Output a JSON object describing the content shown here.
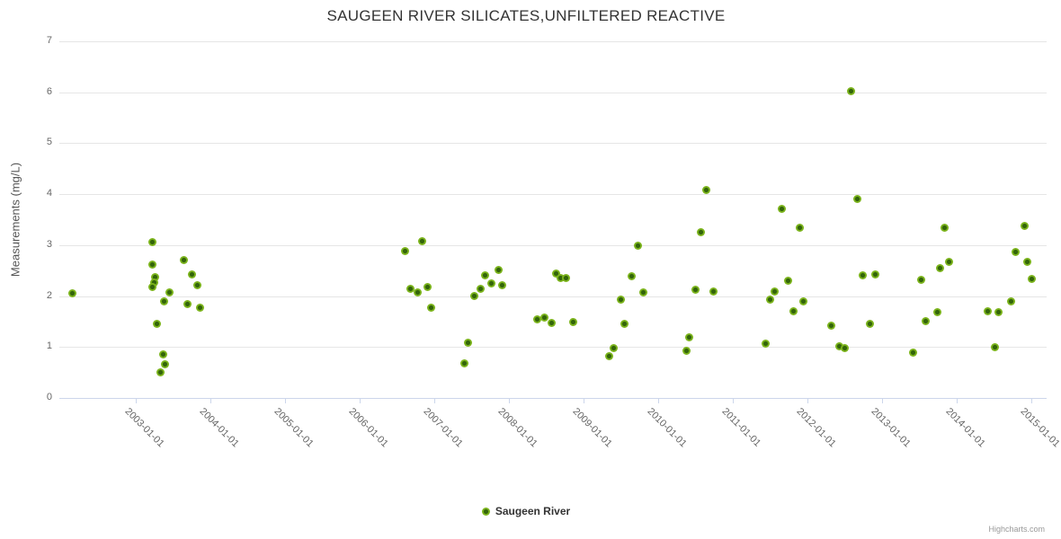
{
  "chart": {
    "title": "SAUGEEN RIVER SILICATES,UNFILTERED REACTIVE",
    "y_axis_title": "Measurements (mg/L)",
    "legend_label": "Saugeen River",
    "credits": "Highcharts.com",
    "colors": {
      "marker": "#7cb41c",
      "marker_core": "#33650a",
      "grid": "#e6e6e6",
      "axis": "#ccd6eb",
      "tick_label": "#666666",
      "title_text": "#333333"
    }
  },
  "chart_data": {
    "type": "scatter",
    "title": "SAUGEEN RIVER SILICATES,UNFILTERED REACTIVE",
    "xlabel": "",
    "ylabel": "Measurements (mg/L)",
    "ylim": [
      0,
      7
    ],
    "xlim_decimal_years": [
      2001.98,
      2015.21
    ],
    "y_ticks": [
      0,
      1,
      2,
      3,
      4,
      5,
      6,
      7
    ],
    "x_ticks": [
      {
        "year": 2003,
        "label": "2003-01-01"
      },
      {
        "year": 2004,
        "label": "2004-01-01"
      },
      {
        "year": 2005,
        "label": "2005-01-01"
      },
      {
        "year": 2006,
        "label": "2006-01-01"
      },
      {
        "year": 2007,
        "label": "2007-01-01"
      },
      {
        "year": 2008,
        "label": "2008-01-01"
      },
      {
        "year": 2009,
        "label": "2009-01-01"
      },
      {
        "year": 2010,
        "label": "2010-01-01"
      },
      {
        "year": 2011,
        "label": "2011-01-01"
      },
      {
        "year": 2012,
        "label": "2012-01-01"
      },
      {
        "year": 2013,
        "label": "2013-01-01"
      },
      {
        "year": 2014,
        "label": "2014-01-01"
      },
      {
        "year": 2015,
        "label": "2015-01-01"
      }
    ],
    "grid": "horizontal",
    "legend_position": "bottom-center",
    "series": [
      {
        "name": "Saugeen River",
        "color": "#7cb41c",
        "points": [
          [
            2002.16,
            2.06
          ],
          [
            2003.23,
            3.06
          ],
          [
            2003.23,
            2.62
          ],
          [
            2003.26,
            2.37
          ],
          [
            2003.25,
            2.26
          ],
          [
            2003.23,
            2.17
          ],
          [
            2003.29,
            1.45
          ],
          [
            2003.34,
            0.51
          ],
          [
            2003.37,
            0.86
          ],
          [
            2003.38,
            1.9
          ],
          [
            2003.4,
            0.66
          ],
          [
            2003.46,
            2.08
          ],
          [
            2003.65,
            2.7
          ],
          [
            2003.7,
            1.85
          ],
          [
            2003.76,
            2.42
          ],
          [
            2003.83,
            2.21
          ],
          [
            2003.86,
            1.77
          ],
          [
            2006.61,
            2.89
          ],
          [
            2006.68,
            2.14
          ],
          [
            2006.78,
            2.08
          ],
          [
            2006.84,
            3.07
          ],
          [
            2006.92,
            2.18
          ],
          [
            2006.96,
            1.77
          ],
          [
            2007.41,
            0.68
          ],
          [
            2007.46,
            1.08
          ],
          [
            2007.54,
            2.0
          ],
          [
            2007.62,
            2.15
          ],
          [
            2007.69,
            2.4
          ],
          [
            2007.77,
            2.25
          ],
          [
            2007.86,
            2.52
          ],
          [
            2007.92,
            2.21
          ],
          [
            2008.39,
            1.55
          ],
          [
            2008.48,
            1.58
          ],
          [
            2008.58,
            1.48
          ],
          [
            2008.64,
            2.45
          ],
          [
            2008.7,
            2.35
          ],
          [
            2008.77,
            2.35
          ],
          [
            2008.87,
            1.49
          ],
          [
            2009.35,
            0.82
          ],
          [
            2009.41,
            0.98
          ],
          [
            2009.5,
            1.93
          ],
          [
            2009.55,
            1.46
          ],
          [
            2009.65,
            2.39
          ],
          [
            2009.73,
            2.99
          ],
          [
            2009.8,
            2.07
          ],
          [
            2010.39,
            0.93
          ],
          [
            2010.42,
            1.19
          ],
          [
            2010.51,
            2.13
          ],
          [
            2010.58,
            3.26
          ],
          [
            2010.65,
            4.08
          ],
          [
            2010.74,
            2.09
          ],
          [
            2011.44,
            1.06
          ],
          [
            2011.5,
            1.93
          ],
          [
            2011.57,
            2.09
          ],
          [
            2011.66,
            3.71
          ],
          [
            2011.74,
            2.3
          ],
          [
            2011.82,
            1.71
          ],
          [
            2011.9,
            3.35
          ],
          [
            2011.95,
            1.89
          ],
          [
            2012.32,
            1.42
          ],
          [
            2012.43,
            1.02
          ],
          [
            2012.5,
            0.98
          ],
          [
            2012.59,
            6.02
          ],
          [
            2012.67,
            3.91
          ],
          [
            2012.74,
            2.4
          ],
          [
            2012.84,
            1.45
          ],
          [
            2012.92,
            2.42
          ],
          [
            2013.42,
            0.89
          ],
          [
            2013.53,
            2.32
          ],
          [
            2013.59,
            1.51
          ],
          [
            2013.74,
            1.69
          ],
          [
            2013.78,
            2.55
          ],
          [
            2013.84,
            3.35
          ],
          [
            2013.9,
            2.67
          ],
          [
            2014.42,
            1.71
          ],
          [
            2014.52,
            0.99
          ],
          [
            2014.56,
            1.69
          ],
          [
            2014.74,
            1.9
          ],
          [
            2014.8,
            2.86
          ],
          [
            2014.92,
            3.37
          ],
          [
            2014.95,
            2.67
          ],
          [
            2015.01,
            2.33
          ]
        ]
      }
    ]
  }
}
